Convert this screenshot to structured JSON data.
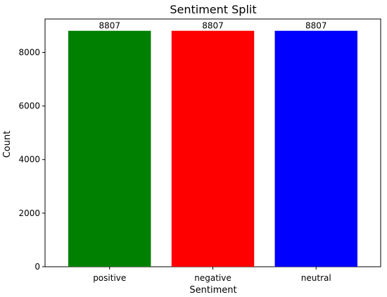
{
  "chart_data": {
    "type": "bar",
    "title": "Sentiment Split",
    "xlabel": "Sentiment",
    "ylabel": "Count",
    "categories": [
      "positive",
      "negative",
      "neutral"
    ],
    "values": [
      8807,
      8807,
      8807
    ],
    "colors": [
      "#008000",
      "#ff0000",
      "#0000ff"
    ],
    "data_labels": [
      "8807",
      "8807",
      "8807"
    ],
    "ylim": [
      0,
      9247
    ],
    "yticks": [
      0,
      2000,
      4000,
      6000,
      8000
    ],
    "grid": false
  }
}
